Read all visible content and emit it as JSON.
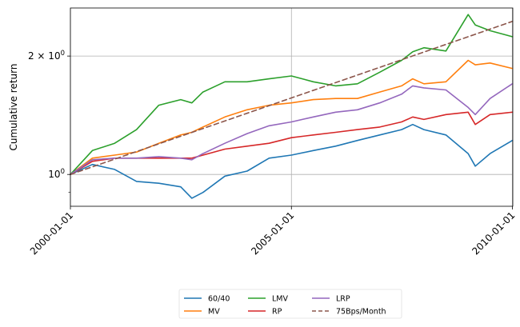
{
  "chart_data": {
    "type": "line",
    "title": "",
    "xlabel": "",
    "ylabel": "Cumulative return",
    "yscale": "log",
    "ylim": [
      0.83,
      2.65
    ],
    "xlim": [
      "2000-01-01",
      "2010-01-01"
    ],
    "grid": true,
    "x_ticks": [
      {
        "date": "2000-01-01",
        "label": "2000-01-01"
      },
      {
        "date": "2005-01-01",
        "label": "2005-01-01"
      },
      {
        "date": "2010-01-01",
        "label": "2010-01-01"
      }
    ],
    "y_ticks": [
      {
        "value": 1,
        "label": "10",
        "exp": "0"
      },
      {
        "value": 2,
        "label": "2 × 10",
        "exp": "0"
      }
    ],
    "y_minor_ticks": [
      0.9,
      3,
      4,
      5,
      6
    ],
    "legend_position": "bottom-center",
    "series": [
      {
        "name": "60/40",
        "color": "#1f77b4",
        "dash": "",
        "x": [
          "2000-01-01",
          "2000-07-01",
          "2001-01-01",
          "2001-07-01",
          "2002-01-01",
          "2002-07-01",
          "2002-10-01",
          "2003-01-01",
          "2003-07-01",
          "2004-01-01",
          "2004-07-01",
          "2005-01-01",
          "2005-07-01",
          "2006-01-01",
          "2006-07-01",
          "2007-01-01",
          "2007-07-01",
          "2007-10-01",
          "2008-01-01",
          "2008-07-01",
          "2009-01-01",
          "2009-03-01",
          "2009-07-01",
          "2010-01-01"
        ],
        "y": [
          1.0,
          1.06,
          1.03,
          0.96,
          0.95,
          0.93,
          0.87,
          0.9,
          0.99,
          1.02,
          1.1,
          1.12,
          1.15,
          1.18,
          1.22,
          1.26,
          1.3,
          1.34,
          1.3,
          1.26,
          1.13,
          1.05,
          1.13,
          1.22
        ]
      },
      {
        "name": "MV",
        "color": "#ff7f0e",
        "dash": "",
        "x": [
          "2000-01-01",
          "2000-07-01",
          "2001-01-01",
          "2001-07-01",
          "2002-01-01",
          "2002-07-01",
          "2002-10-01",
          "2003-01-01",
          "2003-07-01",
          "2004-01-01",
          "2004-07-01",
          "2005-01-01",
          "2005-07-01",
          "2006-01-01",
          "2006-07-01",
          "2007-01-01",
          "2007-07-01",
          "2007-10-01",
          "2008-01-01",
          "2008-07-01",
          "2009-01-01",
          "2009-03-01",
          "2009-07-01",
          "2010-01-01"
        ],
        "y": [
          1.0,
          1.1,
          1.12,
          1.14,
          1.2,
          1.26,
          1.28,
          1.32,
          1.4,
          1.46,
          1.5,
          1.52,
          1.55,
          1.56,
          1.56,
          1.62,
          1.68,
          1.75,
          1.7,
          1.72,
          1.95,
          1.9,
          1.92,
          1.86
        ]
      },
      {
        "name": "LMV",
        "color": "#2ca02c",
        "dash": "",
        "x": [
          "2000-01-01",
          "2000-07-01",
          "2001-01-01",
          "2001-07-01",
          "2002-01-01",
          "2002-07-01",
          "2002-10-01",
          "2003-01-01",
          "2003-07-01",
          "2004-01-01",
          "2004-07-01",
          "2005-01-01",
          "2005-07-01",
          "2006-01-01",
          "2006-07-01",
          "2007-01-01",
          "2007-07-01",
          "2007-10-01",
          "2008-01-01",
          "2008-07-01",
          "2009-01-01",
          "2009-03-01",
          "2009-07-01",
          "2010-01-01"
        ],
        "y": [
          1.0,
          1.15,
          1.2,
          1.3,
          1.5,
          1.55,
          1.52,
          1.62,
          1.72,
          1.72,
          1.75,
          1.78,
          1.72,
          1.68,
          1.7,
          1.82,
          1.95,
          2.05,
          2.1,
          2.06,
          2.55,
          2.4,
          2.32,
          2.24
        ]
      },
      {
        "name": "RP",
        "color": "#d62728",
        "dash": "",
        "x": [
          "2000-01-01",
          "2000-07-01",
          "2001-01-01",
          "2001-07-01",
          "2002-01-01",
          "2002-07-01",
          "2002-10-01",
          "2003-01-01",
          "2003-07-01",
          "2004-01-01",
          "2004-07-01",
          "2005-01-01",
          "2005-07-01",
          "2006-01-01",
          "2006-07-01",
          "2007-01-01",
          "2007-07-01",
          "2007-10-01",
          "2008-01-01",
          "2008-07-01",
          "2009-01-01",
          "2009-03-01",
          "2009-07-01",
          "2010-01-01"
        ],
        "y": [
          1.0,
          1.08,
          1.1,
          1.1,
          1.1,
          1.1,
          1.1,
          1.12,
          1.16,
          1.18,
          1.2,
          1.24,
          1.26,
          1.28,
          1.3,
          1.32,
          1.36,
          1.4,
          1.38,
          1.42,
          1.44,
          1.34,
          1.42,
          1.44
        ]
      },
      {
        "name": "LRP",
        "color": "#9467bd",
        "dash": "",
        "x": [
          "2000-01-01",
          "2000-07-01",
          "2001-01-01",
          "2001-07-01",
          "2002-01-01",
          "2002-07-01",
          "2002-10-01",
          "2003-01-01",
          "2003-07-01",
          "2004-01-01",
          "2004-07-01",
          "2005-01-01",
          "2005-07-01",
          "2006-01-01",
          "2006-07-01",
          "2007-01-01",
          "2007-07-01",
          "2007-10-01",
          "2008-01-01",
          "2008-07-01",
          "2009-01-01",
          "2009-03-01",
          "2009-07-01",
          "2010-01-01"
        ],
        "y": [
          1.0,
          1.09,
          1.1,
          1.1,
          1.11,
          1.1,
          1.09,
          1.13,
          1.2,
          1.27,
          1.33,
          1.36,
          1.4,
          1.44,
          1.46,
          1.52,
          1.6,
          1.68,
          1.66,
          1.64,
          1.48,
          1.42,
          1.56,
          1.7
        ]
      },
      {
        "name": "75Bps/Month",
        "color": "#8c564b",
        "dash": "6,4",
        "x": [
          "2000-01-01",
          "2010-01-01"
        ],
        "y": [
          1.0,
          2.45
        ]
      }
    ]
  }
}
